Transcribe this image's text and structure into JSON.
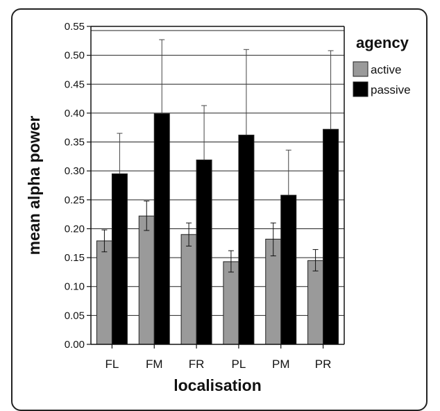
{
  "chart_data": {
    "type": "bar",
    "xlabel": "localisation",
    "ylabel": "mean alpha power",
    "ylim": [
      0,
      0.55
    ],
    "yticks": [
      "0.00",
      "0.05",
      "0.10",
      "0.15",
      "0.20",
      "0.25",
      "0.30",
      "0.35",
      "0.40",
      "0.45",
      "0.50",
      "0.55"
    ],
    "categories": [
      "FL",
      "FM",
      "FR",
      "PL",
      "PM",
      "PR"
    ],
    "legend": {
      "title": "agency",
      "position": "top-right"
    },
    "series": [
      {
        "name": "active",
        "color": "#9a9a9a",
        "values": [
          0.179,
          0.222,
          0.19,
          0.143,
          0.182,
          0.145
        ],
        "error_upper": [
          0.198,
          0.248,
          0.21,
          0.162,
          0.21,
          0.164
        ],
        "error_lower": [
          0.16,
          0.197,
          0.17,
          0.125,
          0.153,
          0.127
        ]
      },
      {
        "name": "passive",
        "color": "#000000",
        "values": [
          0.295,
          0.399,
          0.319,
          0.362,
          0.258,
          0.372
        ],
        "error_upper": [
          0.365,
          0.527,
          0.413,
          0.51,
          0.336,
          0.508
        ]
      }
    ]
  }
}
